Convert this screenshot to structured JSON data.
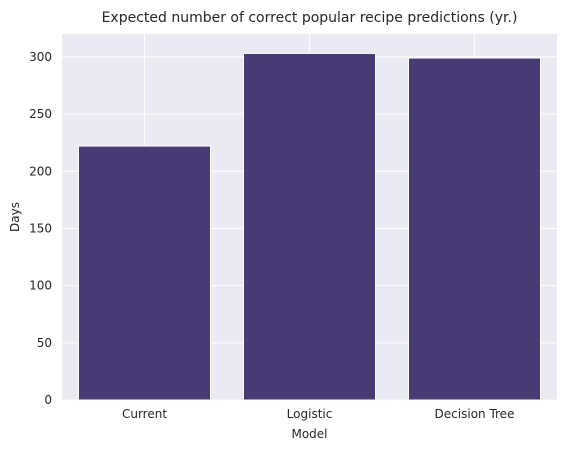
{
  "chart_data": {
    "type": "bar",
    "title": "Expected number of correct popular recipe predictions (yr.)",
    "xlabel": "Model",
    "ylabel": "Days",
    "categories": [
      "Current",
      "Logistic",
      "Decision Tree"
    ],
    "values": [
      222,
      303,
      299
    ],
    "ylim": [
      0,
      320
    ],
    "yticks": [
      0,
      50,
      100,
      150,
      200,
      250,
      300
    ],
    "grid": true,
    "bar_color": "#483A72",
    "background_color": "#EAEAF2"
  }
}
